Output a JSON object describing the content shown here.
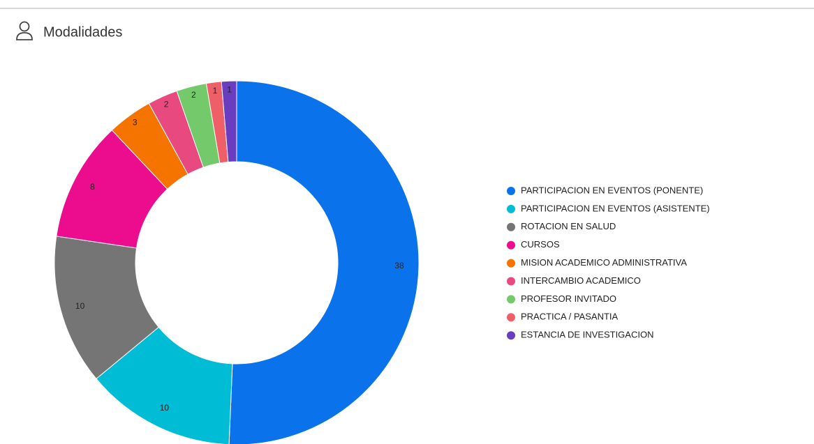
{
  "chart_data": {
    "type": "donut",
    "title": "Modalidades",
    "categories": [
      "PARTICIPACION EN EVENTOS (PONENTE)",
      "PARTICIPACION EN EVENTOS (ASISTENTE)",
      "ROTACION EN SALUD",
      "CURSOS",
      "MISION ACADEMICO ADMINISTRATIVA",
      "INTERCAMBIO ACADEMICO",
      "PROFESOR INVITADO",
      "PRACTICA / PASANTIA",
      "ESTANCIA DE INVESTIGACION"
    ],
    "values": [
      38,
      10,
      10,
      8,
      3,
      2,
      2,
      1,
      1
    ],
    "colors": [
      "#0a73eb",
      "#00bcd4",
      "#757575",
      "#ec0c8e",
      "#f57400",
      "#e84a7f",
      "#74c96b",
      "#ee5f67",
      "#6a3cc0"
    ]
  }
}
